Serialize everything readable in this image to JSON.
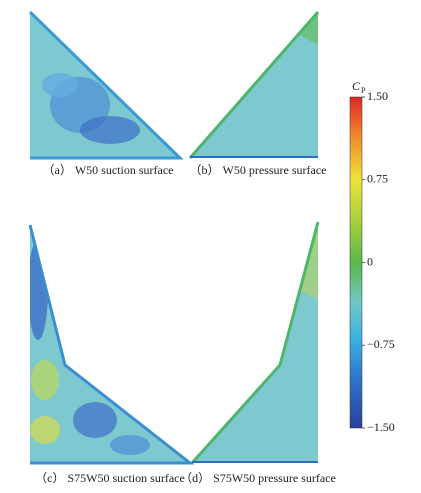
{
  "panels": [
    {
      "caption": "（a） W50 suction surface"
    },
    {
      "caption": "（b） W50 pressure surface"
    },
    {
      "caption": "（c） S75W50 suction surface"
    },
    {
      "caption": "（d） S75W50 pressure surface"
    }
  ],
  "colorbar": {
    "label": "C",
    "label_sub": "P",
    "lim": [
      -1.5,
      1.5
    ],
    "ticks": [
      {
        "value": 1.5,
        "label": "1.50"
      },
      0.75,
      0,
      {
        "value": -0.75,
        "label": "−0.75"
      },
      {
        "value": -1.5,
        "label": "−1.50"
      }
    ]
  }
}
